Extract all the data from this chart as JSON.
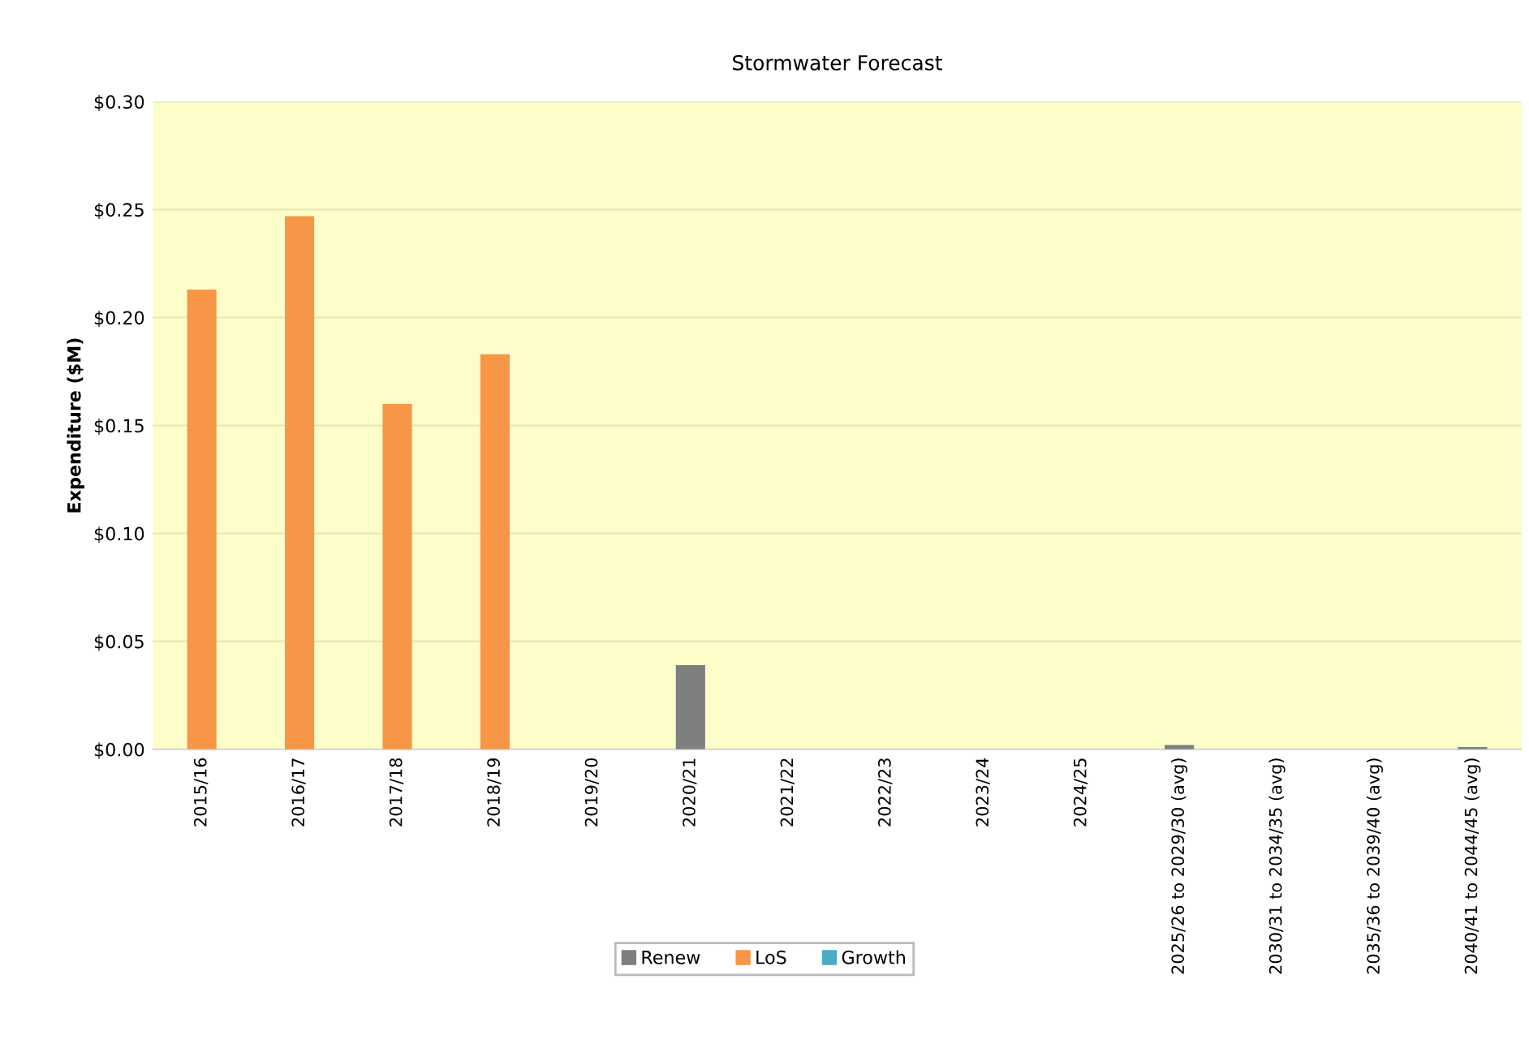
{
  "chart_data": {
    "type": "bar",
    "title": "Stormwater Forecast",
    "ylabel": "Expenditure ($M)",
    "categories": [
      "2015/16",
      "2016/17",
      "2017/18",
      "2018/19",
      "2019/20",
      "2020/21",
      "2021/22",
      "2022/23",
      "2023/24",
      "2024/25",
      "2025/26 to 2029/30 (avg)",
      "2030/31 to 2034/35 (avg)",
      "2035/36 to 2039/40 (avg)",
      "2040/41 to 2044/45 (avg)"
    ],
    "series": [
      {
        "name": "Renew",
        "color": "#7f7f7f",
        "values": [
          0,
          0,
          0,
          0,
          0,
          0.039,
          0,
          0,
          0,
          0,
          0.002,
          0,
          0,
          0.001
        ]
      },
      {
        "name": "LoS",
        "color": "#f79646",
        "values": [
          0.213,
          0.247,
          0.16,
          0.183,
          0,
          0,
          0,
          0,
          0,
          0,
          0,
          0,
          0,
          0
        ]
      },
      {
        "name": "Growth",
        "color": "#4bacc6",
        "values": [
          0,
          0,
          0,
          0,
          0,
          0,
          0,
          0,
          0,
          0,
          0,
          0,
          0,
          0
        ]
      }
    ],
    "ylim": [
      0,
      0.3
    ],
    "yticks": [
      {
        "value": 0,
        "label": "$0.00"
      },
      {
        "value": 0.05,
        "label": "$0.05"
      },
      {
        "value": 0.1,
        "label": "$0.10"
      },
      {
        "value": 0.15,
        "label": "$0.15"
      },
      {
        "value": 0.2,
        "label": "$0.20"
      },
      {
        "value": 0.25,
        "label": "$0.25"
      },
      {
        "value": 0.3,
        "label": "$0.30"
      }
    ],
    "grid": "y",
    "legend": "bottom"
  }
}
